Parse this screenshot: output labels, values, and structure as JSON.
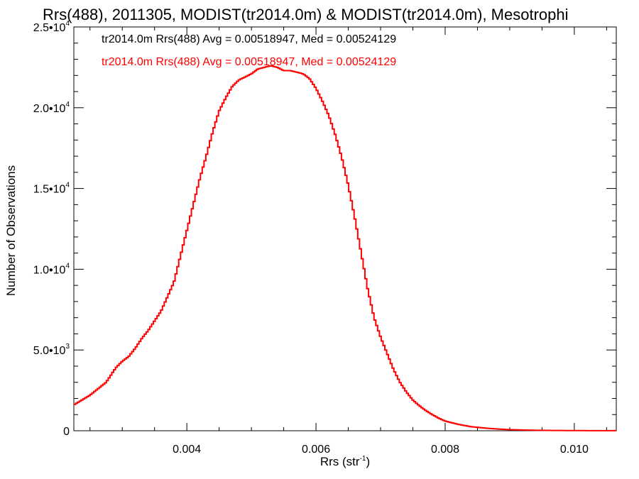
{
  "chart_data": {
    "type": "line",
    "title": "Rrs(488), 2011305, MODIST(tr2014.0m) & MODIST(tr2014.0m), Mesotrophi",
    "xlabel": "Rrs (str",
    "xlabel_sup": "-1",
    "xlabel_end": ")",
    "ylabel": "Number of Observations",
    "xlim": [
      0.00225,
      0.01065
    ],
    "ylim": [
      0,
      25000
    ],
    "x_ticks": [
      {
        "value": 0.004,
        "label": "0.004"
      },
      {
        "value": 0.006,
        "label": "0.006"
      },
      {
        "value": 0.008,
        "label": "0.008"
      },
      {
        "value": 0.01,
        "label": "0.010"
      }
    ],
    "y_ticks": [
      {
        "value": 0,
        "mant": "0",
        "exp": ""
      },
      {
        "value": 5000,
        "mant": "5.0•10",
        "exp": "3"
      },
      {
        "value": 10000,
        "mant": "1.0•10",
        "exp": "4"
      },
      {
        "value": 15000,
        "mant": "1.5•10",
        "exp": "4"
      },
      {
        "value": 20000,
        "mant": "2.0•10",
        "exp": "4"
      },
      {
        "value": 25000,
        "mant": "2.5•10",
        "exp": "4"
      }
    ],
    "legend": [
      {
        "text": "tr2014.0m Rrs(488) Avg = 0.00518947, Med = 0.00524129",
        "color": "#000000"
      },
      {
        "text": "tr2014.0m Rrs(488) Avg = 0.00518947, Med = 0.00524129",
        "color": "#ff0000"
      }
    ],
    "series": [
      {
        "color": "#ff0000",
        "x": [
          0.00225,
          0.0025,
          0.00275,
          0.0029,
          0.003,
          0.0031,
          0.0032,
          0.0033,
          0.0034,
          0.0035,
          0.0036,
          0.0037,
          0.0038,
          0.0039,
          0.004,
          0.0041,
          0.0042,
          0.0043,
          0.0044,
          0.0045,
          0.0046,
          0.0047,
          0.0048,
          0.0049,
          0.005,
          0.0051,
          0.0052,
          0.0053,
          0.0054,
          0.0055,
          0.0056,
          0.0057,
          0.0058,
          0.0059,
          0.006,
          0.0061,
          0.0062,
          0.0063,
          0.0064,
          0.0065,
          0.0066,
          0.0067,
          0.0068,
          0.0069,
          0.007,
          0.0071,
          0.0072,
          0.0073,
          0.0074,
          0.0075,
          0.0076,
          0.0077,
          0.0078,
          0.0079,
          0.008,
          0.0082,
          0.0084,
          0.0086,
          0.0088,
          0.009,
          0.0092,
          0.0094,
          0.0096,
          0.0098,
          0.01,
          0.0102,
          0.0104,
          0.01065
        ],
        "y": [
          1600,
          2200,
          3000,
          3900,
          4300,
          4600,
          5100,
          5700,
          6200,
          6800,
          7400,
          8300,
          9200,
          10800,
          12400,
          14000,
          15600,
          17000,
          18500,
          19800,
          20600,
          21300,
          21700,
          21900,
          22100,
          22400,
          22500,
          22600,
          22500,
          22300,
          22300,
          22200,
          22100,
          21800,
          21200,
          20400,
          19500,
          18300,
          16900,
          15200,
          13200,
          11000,
          8800,
          7000,
          5800,
          4800,
          3800,
          3000,
          2400,
          1900,
          1550,
          1250,
          1000,
          780,
          600,
          400,
          250,
          170,
          110,
          70,
          45,
          30,
          20,
          15,
          10,
          8,
          5,
          3
        ]
      }
    ]
  }
}
